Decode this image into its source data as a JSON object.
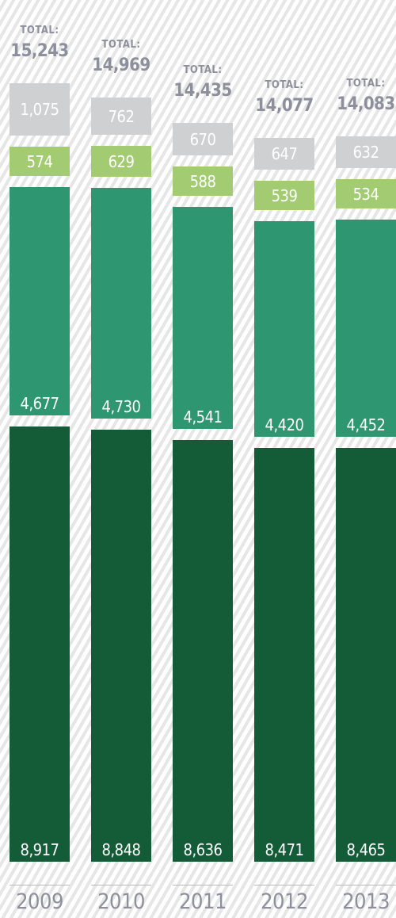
{
  "chart_data": {
    "type": "bar",
    "stacked": true,
    "categories": [
      "2009",
      "2010",
      "2011",
      "2012",
      "2013"
    ],
    "total_label": "TOTAL:",
    "totals": [
      "15,243",
      "14,969",
      "14,435",
      "14,077",
      "14,083"
    ],
    "series": [
      {
        "values": [
          8917,
          8848,
          8636,
          8471,
          8465
        ],
        "labels": [
          "8,917",
          "8,848",
          "8,636",
          "8,471",
          "8,465"
        ],
        "color": "#145c37",
        "text_color": "#ffffff"
      },
      {
        "values": [
          4677,
          4730,
          4541,
          4420,
          4452
        ],
        "labels": [
          "4,677",
          "4,730",
          "4,541",
          "4,420",
          "4,452"
        ],
        "color": "#2e9671",
        "text_color": "#ffffff"
      },
      {
        "values": [
          574,
          629,
          588,
          539,
          534
        ],
        "labels": [
          "574",
          "629",
          "588",
          "539",
          "534"
        ],
        "color": "#a2cb72",
        "text_color": "#ffffff"
      },
      {
        "values": [
          1075,
          762,
          670,
          647,
          632
        ],
        "labels": [
          "1,075",
          "762",
          "670",
          "647",
          "632"
        ],
        "color": "#cfd0d2",
        "text_color": "#ffffff"
      }
    ]
  }
}
